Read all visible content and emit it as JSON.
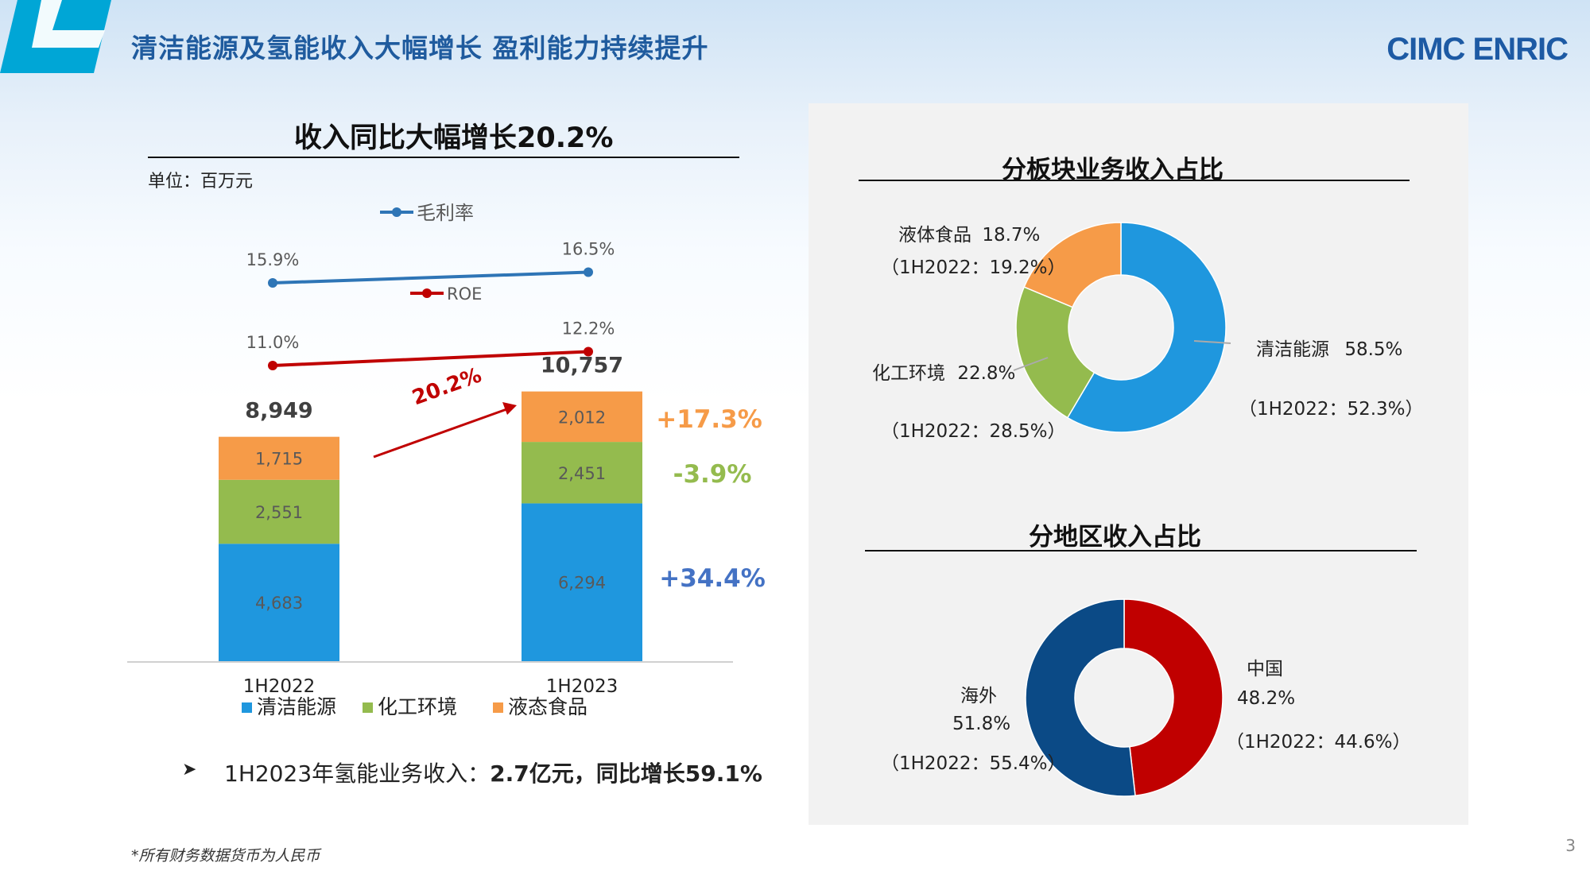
{
  "header": {
    "title": "清洁能源及氢能收入大幅增长 盈利能力持续提升",
    "logo_text": "CIMC ENRIC"
  },
  "left_chart": {
    "title": "收入同比大幅增长20.2%",
    "unit": "单位：百万元",
    "growth_arrow_label": "20.2%",
    "segment_growth": [
      "+17.3%",
      "-3.9%",
      "+34.4%"
    ]
  },
  "bullet": {
    "prefix": "1H2023年氢能业务收入：",
    "bold": "2.7亿元，同比增长59.1%"
  },
  "footnote": "*所有财务数据货币为人民币",
  "page_number": "3",
  "right_top": {
    "title": "分板块业务收入占比",
    "labels": [
      {
        "name": "液体食品",
        "value": "18.7%",
        "prior": "（1H2022：19.2%）"
      },
      {
        "name": "化工环境",
        "value": "22.8%",
        "prior": "（1H2022：28.5%）"
      },
      {
        "name": "清洁能源",
        "value": "58.5%",
        "prior": "（1H2022：52.3%）"
      }
    ]
  },
  "right_bottom": {
    "title": "分地区收入占比",
    "labels": [
      {
        "name": "中国",
        "value": "48.2%",
        "prior": "（1H2022：44.6%）"
      },
      {
        "name": "海外",
        "value": "51.8%",
        "prior": "（1H2022：55.4%）"
      }
    ]
  },
  "colors": {
    "clean_energy": "#1f97de",
    "chemical": "#94bb4e",
    "liquid_food": "#f69b48",
    "gross_margin": "#2e75b6",
    "roe": "#c00000",
    "china": "#c00000",
    "overseas": "#0b4a86",
    "brand_blue": "#1f5b9e",
    "accent_cyan": "#00a6d6"
  },
  "chart_data": [
    {
      "type": "bar",
      "stacked": true,
      "categories": [
        "1H2022",
        "1H2023"
      ],
      "series": [
        {
          "name": "清洁能源",
          "values": [
            4683,
            6294
          ],
          "labels": [
            "4,683",
            "6,294"
          ]
        },
        {
          "name": "化工环境",
          "values": [
            2551,
            2451
          ],
          "labels": [
            "2,551",
            "2,451"
          ]
        },
        {
          "name": "液态食品",
          "values": [
            1715,
            2012
          ],
          "labels": [
            "1,715",
            "2,012"
          ]
        }
      ],
      "totals": [
        8949,
        10757
      ],
      "total_labels": [
        "8,949",
        "10,757"
      ]
    },
    {
      "type": "line",
      "categories": [
        "1H2022",
        "1H2023"
      ],
      "series": [
        {
          "name": "毛利率",
          "values": [
            15.9,
            16.5
          ],
          "labels": [
            "15.9%",
            "16.5%"
          ]
        },
        {
          "name": "ROE",
          "values": [
            11.0,
            12.2
          ],
          "labels": [
            "11.0%",
            "12.2%"
          ]
        }
      ]
    },
    {
      "type": "pie",
      "donut": true,
      "slices": [
        {
          "name": "清洁能源",
          "value": 58.5
        },
        {
          "name": "化工环境",
          "value": 22.8
        },
        {
          "name": "液体食品",
          "value": 18.7
        }
      ]
    },
    {
      "type": "pie",
      "donut": true,
      "slices": [
        {
          "name": "中国",
          "value": 48.2
        },
        {
          "name": "海外",
          "value": 51.8
        }
      ]
    }
  ]
}
